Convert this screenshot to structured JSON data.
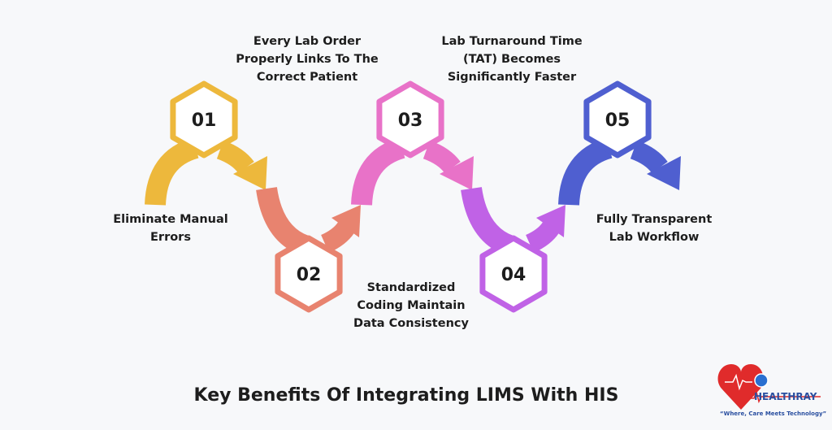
{
  "steps": [
    {
      "number": "01",
      "label": [
        "Eliminate Manual",
        "Errors"
      ],
      "color": "#edb83c",
      "position": "top"
    },
    {
      "number": "02",
      "label": [
        "Every Lab Order",
        "Properly Links To The",
        "Correct Patient"
      ],
      "color": "#e8836f",
      "position": "bottom"
    },
    {
      "number": "03",
      "label": [
        "Standardized",
        "Coding Maintain",
        "Data Consistency"
      ],
      "color": "#e872c8",
      "position": "top"
    },
    {
      "number": "04",
      "label": [
        "Lab Turnaround Time",
        "(TAT) Becomes",
        "Significantly Faster"
      ],
      "color": "#c062e6",
      "position": "bottom"
    },
    {
      "number": "05",
      "label": [
        "Fully Transparent",
        "Lab Workflow"
      ],
      "color": "#4f5fd0",
      "position": "top"
    }
  ],
  "title": "Key Benefits Of Integrating LIMS With HIS",
  "logo": {
    "brand": "HEALTHRAY",
    "tagline": "“Where, Care Meets Technology”",
    "heart_color": "#e02b2b",
    "brand_color": "#2a4fa0"
  }
}
